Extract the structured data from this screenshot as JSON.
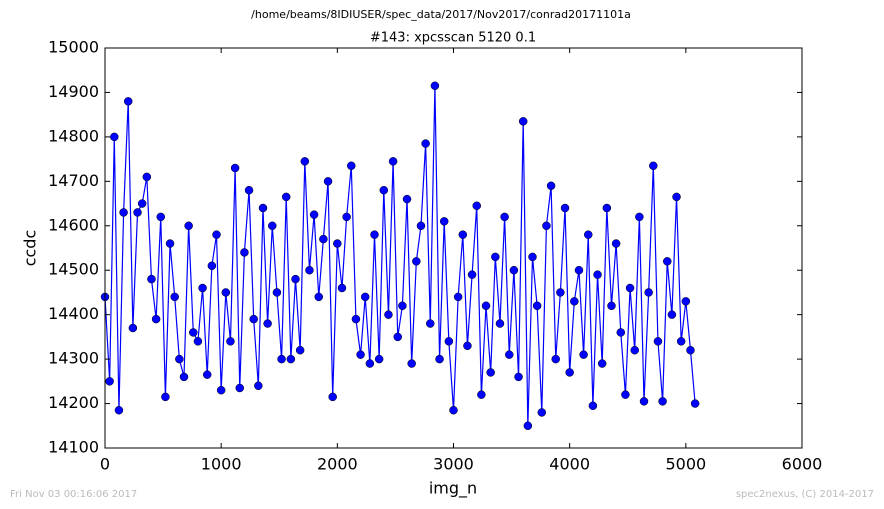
{
  "chart_data": {
    "type": "line",
    "header": "/home/beams/8IDIUSER/spec_data/2017/Nov2017/conrad20171101a",
    "title": "#143: xpcsscan 5120 0.1",
    "xlabel": "img_n",
    "ylabel": "ccdc",
    "footer_left": "Fri Nov 03 00:16:06 2017",
    "footer_right": "spec2nexus, (C) 2014-2017",
    "xlim": [
      0,
      6000
    ],
    "xticks": [
      0,
      1000,
      2000,
      3000,
      4000,
      5000,
      6000
    ],
    "ylim": [
      14100,
      15000
    ],
    "yticks": [
      14100,
      14200,
      14300,
      14400,
      14500,
      14600,
      14700,
      14800,
      14900,
      15000
    ],
    "x": [
      0,
      40,
      80,
      120,
      160,
      200,
      240,
      280,
      320,
      360,
      400,
      440,
      480,
      520,
      560,
      600,
      640,
      680,
      720,
      760,
      800,
      840,
      880,
      920,
      960,
      1000,
      1040,
      1080,
      1120,
      1160,
      1200,
      1240,
      1280,
      1320,
      1360,
      1400,
      1440,
      1480,
      1520,
      1560,
      1600,
      1640,
      1680,
      1720,
      1760,
      1800,
      1840,
      1880,
      1920,
      1960,
      2000,
      2040,
      2080,
      2120,
      2160,
      2200,
      2240,
      2280,
      2320,
      2360,
      2400,
      2440,
      2480,
      2520,
      2560,
      2600,
      2640,
      2680,
      2720,
      2760,
      2800,
      2840,
      2880,
      2920,
      2960,
      3000,
      3040,
      3080,
      3120,
      3160,
      3200,
      3240,
      3280,
      3320,
      3360,
      3400,
      3440,
      3480,
      3520,
      3560,
      3600,
      3640,
      3680,
      3720,
      3760,
      3800,
      3840,
      3880,
      3920,
      3960,
      4000,
      4040,
      4080,
      4120,
      4160,
      4200,
      4240,
      4280,
      4320,
      4360,
      4400,
      4440,
      4480,
      4520,
      4560,
      4600,
      4640,
      4680,
      4720,
      4760,
      4800,
      4840,
      4880,
      4920,
      4960,
      5000,
      5040,
      5080
    ],
    "series": [
      {
        "name": "ccdc",
        "color": "#0000ff",
        "values": [
          14440,
          14250,
          14800,
          14185,
          14630,
          14880,
          14370,
          14630,
          14650,
          14710,
          14480,
          14390,
          14620,
          14215,
          14560,
          14440,
          14300,
          14260,
          14600,
          14360,
          14340,
          14460,
          14265,
          14510,
          14580,
          14230,
          14450,
          14340,
          14730,
          14235,
          14540,
          14680,
          14390,
          14240,
          14640,
          14380,
          14600,
          14450,
          14300,
          14665,
          14300,
          14480,
          14320,
          14745,
          14500,
          14625,
          14440,
          14570,
          14700,
          14215,
          14560,
          14460,
          14620,
          14735,
          14390,
          14310,
          14440,
          14290,
          14580,
          14300,
          14680,
          14400,
          14745,
          14350,
          14420,
          14660,
          14290,
          14520,
          14600,
          14785,
          14380,
          14915,
          14300,
          14610,
          14340,
          14185,
          14440,
          14580,
          14330,
          14490,
          14645,
          14220,
          14420,
          14270,
          14530,
          14380,
          14620,
          14310,
          14500,
          14260,
          14835,
          14150,
          14530,
          14420,
          14180,
          14600,
          14690,
          14300,
          14450,
          14640,
          14270,
          14430,
          14500,
          14310,
          14580,
          14195,
          14490,
          14290,
          14640,
          14420,
          14560,
          14360,
          14220,
          14460,
          14320,
          14620,
          14205,
          14450,
          14735,
          14340,
          14205,
          14520,
          14400,
          14665,
          14340,
          14430,
          14320,
          14200
        ]
      }
    ]
  }
}
